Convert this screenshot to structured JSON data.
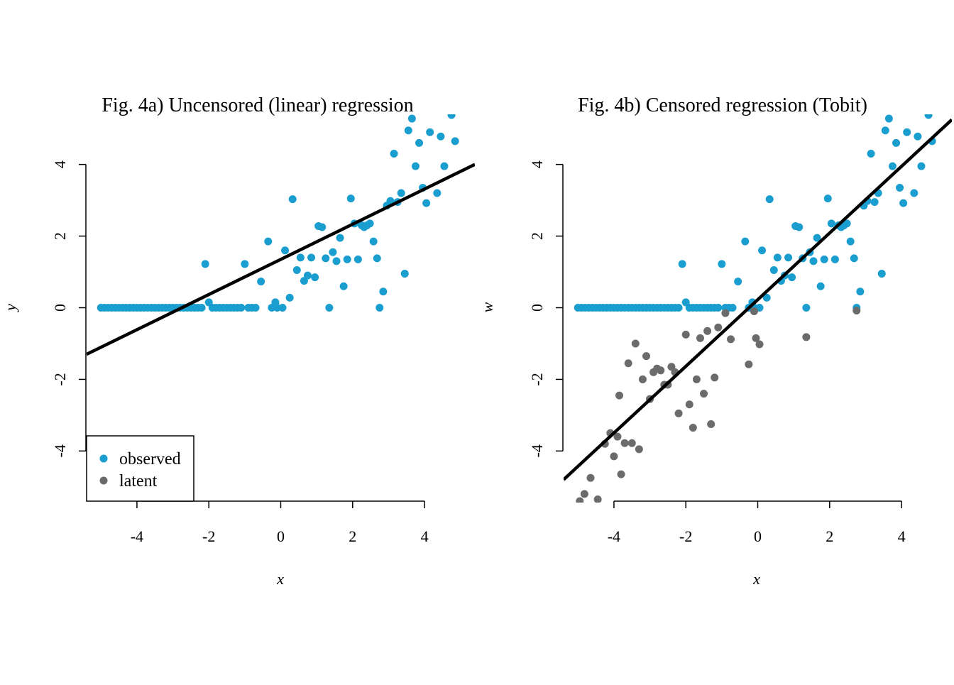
{
  "colors": {
    "observed": "#1a9ecf",
    "latent": "#6b6b6b",
    "line": "#000000"
  },
  "legend": {
    "items": [
      {
        "label": "observed",
        "color": "#1a9ecf"
      },
      {
        "label": "latent",
        "color": "#6b6b6b"
      }
    ],
    "placement": "bottom-left"
  },
  "chart_data": [
    {
      "type": "scatter",
      "title": "Fig. 4a) Uncensored (linear) regression",
      "xlabel": "x",
      "ylabel": "y",
      "xticks": [
        "-4",
        "-2",
        "0",
        "2",
        "4"
      ],
      "yticks": [
        "-4",
        "-2",
        "0",
        "2",
        "4"
      ],
      "xlim": [
        -5.4,
        5.4
      ],
      "ylim": [
        -5.4,
        5.4
      ],
      "grid": false,
      "series": [
        {
          "name": "observed",
          "color": "#1a9ecf",
          "points": [
            [
              -5.0,
              0
            ],
            [
              -4.9,
              0
            ],
            [
              -4.8,
              0
            ],
            [
              -4.7,
              0
            ],
            [
              -4.6,
              0
            ],
            [
              -4.5,
              0
            ],
            [
              -4.4,
              0
            ],
            [
              -4.3,
              0
            ],
            [
              -4.2,
              0
            ],
            [
              -4.1,
              0
            ],
            [
              -4.0,
              0
            ],
            [
              -3.9,
              0
            ],
            [
              -3.8,
              0
            ],
            [
              -3.7,
              0
            ],
            [
              -3.6,
              0
            ],
            [
              -3.5,
              0
            ],
            [
              -3.4,
              0
            ],
            [
              -3.3,
              0
            ],
            [
              -3.2,
              0
            ],
            [
              -3.1,
              0
            ],
            [
              -3.0,
              0
            ],
            [
              -2.9,
              0
            ],
            [
              -2.8,
              0
            ],
            [
              -2.7,
              0
            ],
            [
              -2.6,
              0
            ],
            [
              -2.5,
              0
            ],
            [
              -2.4,
              0
            ],
            [
              -2.3,
              0
            ],
            [
              -2.2,
              0
            ],
            [
              -2.1,
              1.22
            ],
            [
              -2.0,
              0.15
            ],
            [
              -1.9,
              0
            ],
            [
              -1.8,
              0
            ],
            [
              -1.7,
              0
            ],
            [
              -1.6,
              0
            ],
            [
              -1.5,
              0
            ],
            [
              -1.4,
              0
            ],
            [
              -1.3,
              0
            ],
            [
              -1.2,
              0
            ],
            [
              -1.1,
              0
            ],
            [
              -1.0,
              1.22
            ],
            [
              -0.9,
              0
            ],
            [
              -0.8,
              0
            ],
            [
              -0.7,
              0
            ],
            [
              -0.55,
              0.73
            ],
            [
              -0.35,
              1.85
            ],
            [
              -0.25,
              0
            ],
            [
              -0.15,
              0.15
            ],
            [
              -0.1,
              0
            ],
            [
              0.05,
              0
            ],
            [
              0.12,
              1.6
            ],
            [
              0.25,
              0.28
            ],
            [
              0.33,
              3.03
            ],
            [
              0.45,
              1.05
            ],
            [
              0.55,
              1.4
            ],
            [
              0.65,
              0.75
            ],
            [
              0.75,
              0.9
            ],
            [
              0.85,
              1.4
            ],
            [
              0.95,
              0.85
            ],
            [
              1.05,
              2.28
            ],
            [
              1.15,
              2.25
            ],
            [
              1.25,
              1.38
            ],
            [
              1.35,
              0
            ],
            [
              1.45,
              1.55
            ],
            [
              1.55,
              1.3
            ],
            [
              1.65,
              1.95
            ],
            [
              1.75,
              0.6
            ],
            [
              1.85,
              1.35
            ],
            [
              1.95,
              3.05
            ],
            [
              2.05,
              2.35
            ],
            [
              2.15,
              1.35
            ],
            [
              2.25,
              2.3
            ],
            [
              2.32,
              2.25
            ],
            [
              2.4,
              2.3
            ],
            [
              2.48,
              2.35
            ],
            [
              2.58,
              1.85
            ],
            [
              2.68,
              1.38
            ],
            [
              2.75,
              0
            ],
            [
              2.85,
              0.45
            ],
            [
              2.95,
              2.85
            ],
            [
              3.05,
              2.98
            ],
            [
              3.15,
              4.3
            ],
            [
              3.25,
              2.95
            ],
            [
              3.35,
              3.2
            ],
            [
              3.45,
              0.95
            ],
            [
              3.55,
              4.95
            ],
            [
              3.65,
              5.28
            ],
            [
              3.75,
              3.95
            ],
            [
              3.85,
              4.6
            ],
            [
              3.95,
              3.35
            ],
            [
              4.05,
              2.92
            ],
            [
              4.15,
              4.9
            ],
            [
              4.35,
              3.2
            ],
            [
              4.45,
              4.78
            ],
            [
              4.55,
              3.95
            ],
            [
              4.75,
              5.38
            ],
            [
              4.85,
              4.65
            ]
          ]
        },
        {
          "name": "fit",
          "type": "line",
          "color": "#000000",
          "points": [
            [
              -5.4,
              -1.3
            ],
            [
              5.4,
              4.0
            ]
          ]
        }
      ]
    },
    {
      "type": "scatter",
      "title": "Fig. 4b) Censored regression (Tobit)",
      "xlabel": "x",
      "ylabel": "w",
      "xticks": [
        "-4",
        "-2",
        "0",
        "2",
        "4"
      ],
      "yticks": [
        "-4",
        "-2",
        "0",
        "2",
        "4"
      ],
      "xlim": [
        -5.4,
        5.4
      ],
      "ylim": [
        -5.4,
        5.4
      ],
      "grid": false,
      "series": [
        {
          "name": "observed",
          "color": "#1a9ecf",
          "points": [
            [
              -5.0,
              0
            ],
            [
              -4.9,
              0
            ],
            [
              -4.8,
              0
            ],
            [
              -4.7,
              0
            ],
            [
              -4.6,
              0
            ],
            [
              -4.5,
              0
            ],
            [
              -4.4,
              0
            ],
            [
              -4.3,
              0
            ],
            [
              -4.2,
              0
            ],
            [
              -4.1,
              0
            ],
            [
              -4.0,
              0
            ],
            [
              -3.9,
              0
            ],
            [
              -3.8,
              0
            ],
            [
              -3.7,
              0
            ],
            [
              -3.6,
              0
            ],
            [
              -3.5,
              0
            ],
            [
              -3.4,
              0
            ],
            [
              -3.3,
              0
            ],
            [
              -3.2,
              0
            ],
            [
              -3.1,
              0
            ],
            [
              -3.0,
              0
            ],
            [
              -2.9,
              0
            ],
            [
              -2.8,
              0
            ],
            [
              -2.7,
              0
            ],
            [
              -2.6,
              0
            ],
            [
              -2.5,
              0
            ],
            [
              -2.4,
              0
            ],
            [
              -2.3,
              0
            ],
            [
              -2.2,
              0
            ],
            [
              -2.1,
              1.22
            ],
            [
              -2.0,
              0.15
            ],
            [
              -1.9,
              0
            ],
            [
              -1.8,
              0
            ],
            [
              -1.7,
              0
            ],
            [
              -1.6,
              0
            ],
            [
              -1.5,
              0
            ],
            [
              -1.4,
              0
            ],
            [
              -1.3,
              0
            ],
            [
              -1.2,
              0
            ],
            [
              -1.1,
              0
            ],
            [
              -1.0,
              1.22
            ],
            [
              -0.9,
              0
            ],
            [
              -0.8,
              0
            ],
            [
              -0.7,
              0
            ],
            [
              -0.55,
              0.73
            ],
            [
              -0.35,
              1.85
            ],
            [
              -0.25,
              0
            ],
            [
              -0.15,
              0.15
            ],
            [
              -0.1,
              0
            ],
            [
              0.05,
              0
            ],
            [
              0.12,
              1.6
            ],
            [
              0.25,
              0.28
            ],
            [
              0.33,
              3.03
            ],
            [
              0.45,
              1.05
            ],
            [
              0.55,
              1.4
            ],
            [
              0.65,
              0.75
            ],
            [
              0.75,
              0.9
            ],
            [
              0.85,
              1.4
            ],
            [
              0.95,
              0.85
            ],
            [
              1.05,
              2.28
            ],
            [
              1.15,
              2.25
            ],
            [
              1.25,
              1.38
            ],
            [
              1.35,
              0
            ],
            [
              1.45,
              1.55
            ],
            [
              1.55,
              1.3
            ],
            [
              1.65,
              1.95
            ],
            [
              1.75,
              0.6
            ],
            [
              1.85,
              1.35
            ],
            [
              1.95,
              3.05
            ],
            [
              2.05,
              2.35
            ],
            [
              2.15,
              1.35
            ],
            [
              2.25,
              2.3
            ],
            [
              2.32,
              2.25
            ],
            [
              2.4,
              2.3
            ],
            [
              2.48,
              2.35
            ],
            [
              2.58,
              1.85
            ],
            [
              2.68,
              1.38
            ],
            [
              2.75,
              0
            ],
            [
              2.85,
              0.45
            ],
            [
              2.95,
              2.85
            ],
            [
              3.05,
              2.98
            ],
            [
              3.15,
              4.3
            ],
            [
              3.25,
              2.95
            ],
            [
              3.35,
              3.2
            ],
            [
              3.45,
              0.95
            ],
            [
              3.55,
              4.95
            ],
            [
              3.65,
              5.28
            ],
            [
              3.75,
              3.95
            ],
            [
              3.85,
              4.6
            ],
            [
              3.95,
              3.35
            ],
            [
              4.05,
              2.92
            ],
            [
              4.15,
              4.9
            ],
            [
              4.35,
              3.2
            ],
            [
              4.45,
              4.78
            ],
            [
              4.55,
              3.95
            ],
            [
              4.75,
              5.38
            ],
            [
              4.85,
              4.65
            ]
          ]
        },
        {
          "name": "latent",
          "color": "#6b6b6b",
          "points": [
            [
              -4.95,
              -5.4
            ],
            [
              -4.82,
              -5.2
            ],
            [
              -4.65,
              -4.75
            ],
            [
              -4.45,
              -5.35
            ],
            [
              -4.25,
              -3.8
            ],
            [
              -4.1,
              -3.5
            ],
            [
              -4.0,
              -4.15
            ],
            [
              -3.9,
              -3.6
            ],
            [
              -3.85,
              -2.45
            ],
            [
              -3.8,
              -4.65
            ],
            [
              -3.7,
              -3.78
            ],
            [
              -3.6,
              -1.55
            ],
            [
              -3.5,
              -3.78
            ],
            [
              -3.4,
              -1.0
            ],
            [
              -3.3,
              -3.95
            ],
            [
              -3.2,
              -2.0
            ],
            [
              -3.1,
              -1.35
            ],
            [
              -3.0,
              -2.55
            ],
            [
              -2.9,
              -1.8
            ],
            [
              -2.8,
              -1.7
            ],
            [
              -2.7,
              -1.75
            ],
            [
              -2.6,
              -2.15
            ],
            [
              -2.5,
              -2.15
            ],
            [
              -2.4,
              -1.65
            ],
            [
              -2.3,
              -1.8
            ],
            [
              -2.2,
              -2.95
            ],
            [
              -2.0,
              -0.75
            ],
            [
              -1.9,
              -2.7
            ],
            [
              -1.8,
              -3.35
            ],
            [
              -1.7,
              -2.0
            ],
            [
              -1.6,
              -0.85
            ],
            [
              -1.5,
              -2.4
            ],
            [
              -1.4,
              -0.65
            ],
            [
              -1.3,
              -3.25
            ],
            [
              -1.2,
              -1.95
            ],
            [
              -1.1,
              -0.55
            ],
            [
              -0.9,
              -0.15
            ],
            [
              -0.75,
              -0.88
            ],
            [
              -0.25,
              -1.58
            ],
            [
              -0.1,
              -0.1
            ],
            [
              -0.05,
              -0.85
            ],
            [
              0.05,
              -1.02
            ],
            [
              1.35,
              -0.82
            ],
            [
              2.75,
              -0.08
            ]
          ]
        },
        {
          "name": "fit",
          "type": "line",
          "color": "#000000",
          "points": [
            [
              -5.4,
              -4.8
            ],
            [
              5.4,
              5.25
            ]
          ]
        }
      ]
    }
  ]
}
